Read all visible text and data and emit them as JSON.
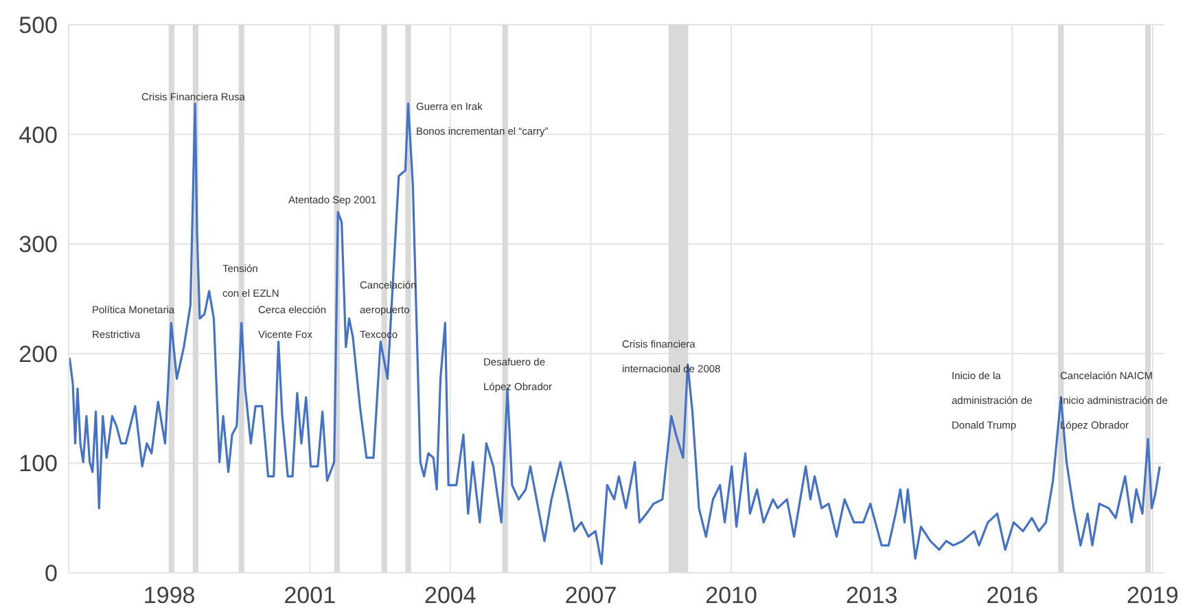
{
  "chart_data": {
    "type": "line",
    "x": [
      1995.87,
      1995.94,
      1995.99,
      1996.04,
      1996.1,
      1996.16,
      1996.23,
      1996.3,
      1996.36,
      1996.43,
      1996.5,
      1996.58,
      1996.66,
      1996.78,
      1996.87,
      1996.97,
      1997.07,
      1997.27,
      1997.42,
      1997.52,
      1997.62,
      1997.76,
      1997.91,
      1998.04,
      1998.16,
      1998.31,
      1998.45,
      1998.55,
      1998.59,
      1998.65,
      1998.75,
      1998.85,
      1998.95,
      1999.07,
      1999.15,
      1999.26,
      1999.34,
      1999.44,
      1999.54,
      1999.62,
      1999.74,
      1999.84,
      1999.98,
      2000.11,
      2000.23,
      2000.33,
      2000.41,
      2000.53,
      2000.63,
      2000.73,
      2000.82,
      2000.92,
      2001.02,
      2001.17,
      2001.27,
      2001.37,
      2001.52,
      2001.6,
      2001.68,
      2001.77,
      2001.84,
      2001.92,
      2002.07,
      2002.21,
      2002.36,
      2002.51,
      2002.66,
      2002.9,
      2003.04,
      2003.1,
      2003.2,
      2003.28,
      2003.36,
      2003.44,
      2003.53,
      2003.64,
      2003.71,
      2003.79,
      2003.89,
      2003.96,
      2004.13,
      2004.28,
      2004.38,
      2004.48,
      2004.63,
      2004.77,
      2004.92,
      2005.09,
      2005.22,
      2005.32,
      2005.46,
      2005.61,
      2005.71,
      2005.86,
      2006.01,
      2006.16,
      2006.35,
      2006.5,
      2006.65,
      2006.8,
      2006.95,
      2007.1,
      2007.23,
      2007.35,
      2007.5,
      2007.6,
      2007.75,
      2007.94,
      2008.04,
      2008.19,
      2008.34,
      2008.53,
      2008.72,
      2008.82,
      2008.97,
      2009.07,
      2009.17,
      2009.31,
      2009.46,
      2009.61,
      2009.76,
      2009.86,
      2010.01,
      2010.11,
      2010.3,
      2010.4,
      2010.55,
      2010.69,
      2010.89,
      2010.99,
      2011.19,
      2011.34,
      2011.59,
      2011.69,
      2011.78,
      2011.93,
      2012.08,
      2012.25,
      2012.42,
      2012.62,
      2012.82,
      2012.97,
      2013.21,
      2013.36,
      2013.51,
      2013.61,
      2013.7,
      2013.77,
      2013.93,
      2014.05,
      2014.25,
      2014.44,
      2014.59,
      2014.74,
      2014.94,
      2015.19,
      2015.29,
      2015.48,
      2015.68,
      2015.85,
      2016.03,
      2016.23,
      2016.42,
      2016.57,
      2016.72,
      2016.87,
      2017.04,
      2017.16,
      2017.31,
      2017.46,
      2017.61,
      2017.71,
      2017.86,
      2018.06,
      2018.21,
      2018.41,
      2018.55,
      2018.65,
      2018.78,
      2018.9,
      2018.98,
      2019.05,
      2019.15
    ],
    "series": [
      {
        "color": "#4472c4",
        "values": [
          196,
          172,
          118,
          168,
          118,
          101,
          143,
          101,
          92,
          147,
          59,
          143,
          105,
          143,
          134,
          118,
          118,
          152,
          97,
          118,
          109,
          156,
          118,
          228,
          177,
          206,
          244,
          428,
          312,
          232,
          236,
          257,
          232,
          101,
          143,
          92,
          126,
          134,
          228,
          168,
          118,
          152,
          152,
          88,
          88,
          211,
          143,
          88,
          88,
          164,
          118,
          160,
          97,
          97,
          147,
          84,
          101,
          329,
          320,
          206,
          232,
          215,
          152,
          105,
          105,
          211,
          177,
          362,
          367,
          428,
          354,
          228,
          101,
          88,
          109,
          105,
          76,
          177,
          228,
          80,
          80,
          126,
          54,
          101,
          46,
          118,
          97,
          46,
          168,
          80,
          67,
          76,
          97,
          63,
          29,
          67,
          101,
          71,
          38,
          46,
          33,
          38,
          8,
          80,
          67,
          88,
          59,
          101,
          46,
          54,
          63,
          67,
          143,
          126,
          105,
          190,
          147,
          59,
          33,
          67,
          80,
          46,
          97,
          42,
          109,
          54,
          76,
          46,
          67,
          59,
          67,
          33,
          97,
          67,
          88,
          59,
          63,
          33,
          67,
          46,
          46,
          63,
          25,
          25,
          54,
          76,
          46,
          76,
          13,
          42,
          29,
          21,
          29,
          25,
          29,
          38,
          25,
          46,
          54,
          21,
          46,
          38,
          50,
          38,
          46,
          84,
          160,
          101,
          59,
          25,
          54,
          25,
          63,
          59,
          50,
          88,
          46,
          76,
          54,
          122,
          59,
          71,
          97
        ]
      }
    ],
    "xlim": [
      1995.85,
      2019.25
    ],
    "xticks": [
      1998,
      2001,
      2004,
      2007,
      2010,
      2013,
      2016,
      2019
    ],
    "ylim": [
      0,
      500
    ],
    "yticks": [
      0,
      100,
      200,
      300,
      400,
      500
    ],
    "grid": true,
    "legend": false,
    "marker": "none",
    "line_style": "solid",
    "bands": [
      {
        "axis": "x",
        "from": 1997.99,
        "to": 1998.11,
        "color": "#d9d9d9"
      },
      {
        "axis": "x",
        "from": 1998.5,
        "to": 1998.62,
        "color": "#d9d9d9"
      },
      {
        "axis": "x",
        "from": 1999.48,
        "to": 1999.6,
        "color": "#d9d9d9"
      },
      {
        "axis": "x",
        "from": 2001.52,
        "to": 2001.64,
        "color": "#d9d9d9"
      },
      {
        "axis": "x",
        "from": 2002.53,
        "to": 2002.65,
        "color": "#d9d9d9"
      },
      {
        "axis": "x",
        "from": 2003.04,
        "to": 2003.16,
        "color": "#d9d9d9"
      },
      {
        "axis": "x",
        "from": 2005.11,
        "to": 2005.23,
        "color": "#d9d9d9"
      },
      {
        "axis": "x",
        "from": 2008.66,
        "to": 2009.08,
        "color": "#d9d9d9"
      },
      {
        "axis": "x",
        "from": 2016.98,
        "to": 2017.1,
        "color": "#d9d9d9"
      },
      {
        "axis": "x",
        "from": 2018.84,
        "to": 2018.96,
        "color": "#d9d9d9"
      }
    ],
    "annotations": [
      "Política Monetaria\nRestrictiva",
      "Crisis Financiera Rusa",
      "Tensión\ncon el EZLN",
      "Cerca elección\nVicente Fox",
      "Atentado Sep 2001",
      "Cancelación\naeropuerto\nTexcoco",
      "Guerra en Irak\nBonos incrementan el “carry”",
      "Desafuero de\nLópez Obrador",
      "Crisis financiera\ninternacional de 2008",
      "Inicio de la\nadministración de\nDonald Trump",
      "Cancelación NAICM\nInicio administración de\nLópez Obrador"
    ]
  }
}
